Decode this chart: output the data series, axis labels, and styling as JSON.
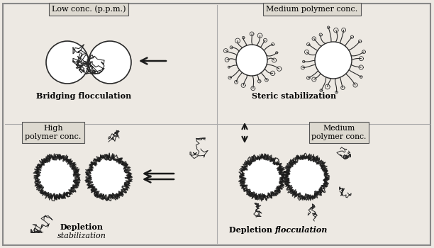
{
  "bg_color": "#ede9e3",
  "border_color": "#888888",
  "fig_width": 6.12,
  "fig_height": 3.5,
  "dpi": 100,
  "labels": {
    "low_conc": "Low conc. (p.p.m.)",
    "medium_polymer_top": "Medium polymer conc.",
    "high_polymer": "High\npolymer conc.",
    "medium_polymer_bot": "Medium\npolymer conc.",
    "bridging": "Bridging flocculation",
    "steric": "Steric stabilization",
    "depletion_stab1": "Depletion",
    "depletion_stab2": "stabilization",
    "depletion_floc1": "Depletion ",
    "depletion_floc2": "flocculation"
  },
  "divider_color": "#aaaaaa",
  "circle_edge": "#2a2a2a",
  "spike_color": "#2a2a2a",
  "tangle_color": "#2a2a2a",
  "arrow_color": "#1a1a1a"
}
